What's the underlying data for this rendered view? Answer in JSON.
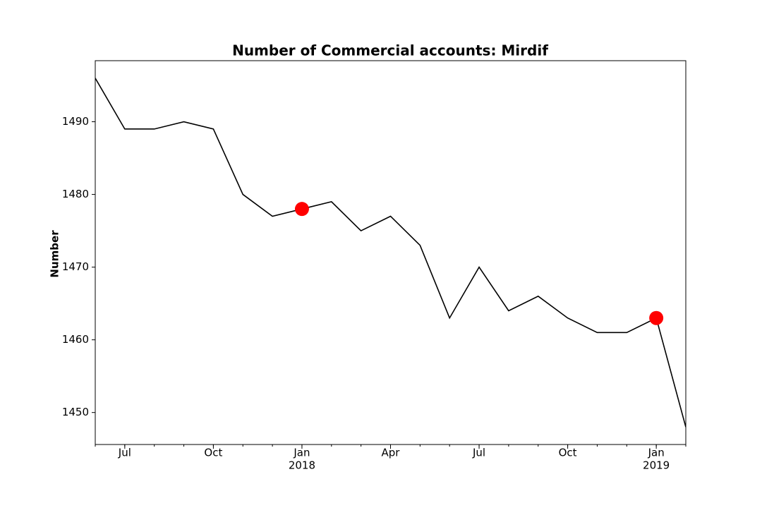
{
  "chart_data": {
    "type": "line",
    "title": "Number of Commercial accounts: Mirdif",
    "ylabel": "Number",
    "x": [
      "2017-06",
      "2017-07",
      "2017-08",
      "2017-09",
      "2017-10",
      "2017-11",
      "2017-12",
      "2018-01",
      "2018-02",
      "2018-03",
      "2018-04",
      "2018-05",
      "2018-06",
      "2018-07",
      "2018-08",
      "2018-09",
      "2018-10",
      "2018-11",
      "2018-12",
      "2019-01",
      "2019-02"
    ],
    "series": [
      {
        "color": "#000000",
        "style": "line",
        "values": [
          1496,
          1489,
          1489,
          1490,
          1489,
          1480,
          1477,
          1478,
          1479,
          1475,
          1477,
          1473,
          1463,
          1470,
          1464,
          1466,
          1463,
          1461,
          1461,
          1463,
          1448
        ]
      },
      {
        "color": "#ff0000",
        "style": "marker",
        "values": [
          null,
          null,
          null,
          null,
          null,
          null,
          null,
          1478,
          null,
          null,
          null,
          null,
          null,
          null,
          null,
          null,
          null,
          null,
          null,
          1463,
          null
        ]
      }
    ],
    "xlim": [
      "2017-06",
      "2019-02"
    ],
    "xticks": [
      {
        "value": "2017-07",
        "label": "Jul"
      },
      {
        "value": "2017-10",
        "label": "Oct"
      },
      {
        "value": "2018-01",
        "label": "Jan",
        "year": "2018"
      },
      {
        "value": "2018-04",
        "label": "Apr"
      },
      {
        "value": "2018-07",
        "label": "Jul"
      },
      {
        "value": "2018-10",
        "label": "Oct"
      },
      {
        "value": "2019-01",
        "label": "Jan",
        "year": "2019"
      }
    ],
    "ylim": [
      1445.6,
      1498.4
    ],
    "yticks": [
      1450,
      1460,
      1470,
      1480,
      1490
    ],
    "grid": false
  }
}
